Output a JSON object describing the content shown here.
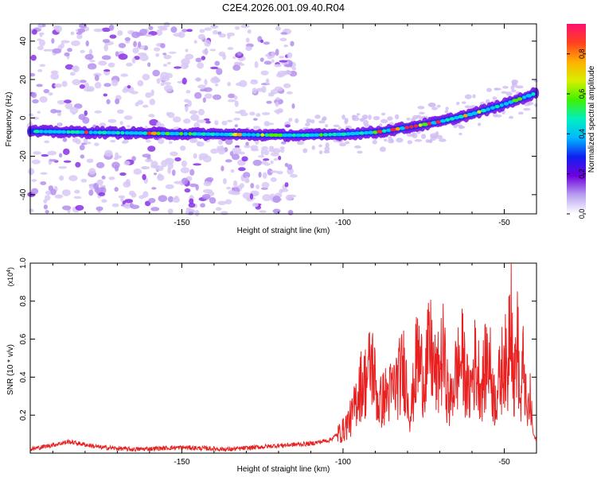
{
  "figure_title": "C2E4.2026.001.09.40.R04",
  "chart_data": [
    {
      "type": "heatmap",
      "panel": "spectrogram",
      "xlabel": "Height of straight line (km)",
      "ylabel": "Frequency (Hz)",
      "xlim": [
        -197,
        -40
      ],
      "ylim": [
        -50,
        49
      ],
      "xticks": [
        -150,
        -100,
        -50
      ],
      "yticks": [
        -40,
        -20,
        0,
        20,
        40
      ],
      "colorbar": {
        "label": "Normalized spectral amplitude",
        "range": [
          0,
          0.95
        ],
        "ticks": [
          0.0,
          0.2,
          0.4,
          0.6,
          0.8
        ],
        "colors": [
          "#ffffff",
          "#b8a0f0",
          "#7000e0",
          "#1020f0",
          "#00b8ff",
          "#00f0c0",
          "#40f000",
          "#d8f000",
          "#ffb000",
          "#ff4020",
          "#ff1070"
        ]
      },
      "ridge": {
        "x": [
          -197,
          -180,
          -160,
          -140,
          -120,
          -110,
          -100,
          -90,
          -80,
          -70,
          -60,
          -50,
          -40
        ],
        "y": [
          -7,
          -7.5,
          -8,
          -8.5,
          -9,
          -9,
          -8.5,
          -7.5,
          -5,
          -2,
          2,
          7,
          13
        ]
      },
      "noise_region_x": [
        -197,
        -115
      ]
    },
    {
      "type": "line",
      "panel": "snr",
      "xlabel": "Height of straight line (km)",
      "ylabel": "SNR (10 * v/v)",
      "y_multiplier": "(x10",
      "y_multiplier_exp": "4",
      "y_multiplier_close": ")",
      "xlim": [
        -197,
        -40
      ],
      "ylim": [
        0,
        1.0
      ],
      "xticks": [
        -150,
        -100,
        -50
      ],
      "yticks": [
        0.2,
        0.4,
        0.6,
        0.8,
        1.0
      ],
      "color": "#ff0000",
      "series": [
        {
          "name": "SNR",
          "x": [
            -197,
            -185,
            -175,
            -165,
            -150,
            -135,
            -120,
            -110,
            -104,
            -100,
            -97,
            -95,
            -93,
            -91,
            -89,
            -87,
            -85,
            -83,
            -81,
            -79,
            -77,
            -75,
            -73,
            -71,
            -69,
            -67,
            -65,
            -63,
            -61,
            -59,
            -57,
            -55,
            -53,
            -51,
            -50,
            -49,
            -48,
            -47,
            -46,
            -45,
            -44,
            -43,
            -42,
            -41,
            -40
          ],
          "y": [
            0.02,
            0.06,
            0.03,
            0.02,
            0.03,
            0.02,
            0.04,
            0.05,
            0.07,
            0.12,
            0.2,
            0.35,
            0.38,
            0.48,
            0.25,
            0.3,
            0.32,
            0.38,
            0.45,
            0.2,
            0.52,
            0.4,
            0.55,
            0.38,
            0.52,
            0.25,
            0.42,
            0.5,
            0.3,
            0.48,
            0.35,
            0.52,
            0.28,
            0.4,
            0.55,
            0.35,
            0.99,
            0.3,
            0.65,
            0.22,
            0.5,
            0.18,
            0.28,
            0.1,
            0.06
          ]
        }
      ]
    }
  ]
}
